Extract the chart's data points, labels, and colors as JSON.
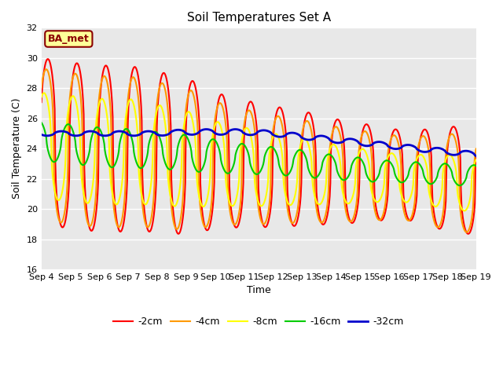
{
  "title": "Soil Temperatures Set A",
  "xlabel": "Time",
  "ylabel": "Soil Temperature (C)",
  "ylim": [
    16,
    32
  ],
  "yticks": [
    16,
    18,
    20,
    22,
    24,
    26,
    28,
    30,
    32
  ],
  "xtick_labels": [
    "Sep 4",
    "Sep 5",
    "Sep 6",
    "Sep 7",
    "Sep 8",
    "Sep 9",
    "Sep 10",
    "Sep 11",
    "Sep 12",
    "Sep 13",
    "Sep 14",
    "Sep 15",
    "Sep 16",
    "Sep 17",
    "Sep 18",
    "Sep 19"
  ],
  "line_colors": {
    "-2cm": "#ff0000",
    "-4cm": "#ff9900",
    "-8cm": "#ffff00",
    "-16cm": "#00cc00",
    "-32cm": "#0000cc"
  },
  "line_widths": {
    "-2cm": 1.5,
    "-4cm": 1.5,
    "-8cm": 1.5,
    "-16cm": 1.5,
    "-32cm": 2.0
  },
  "annotation_text": "BA_met",
  "bg_color": "#e8e8e8",
  "fig_bg_color": "#ffffff",
  "grid_color": "#ffffff",
  "title_fontsize": 11,
  "label_fontsize": 9,
  "tick_fontsize": 8
}
